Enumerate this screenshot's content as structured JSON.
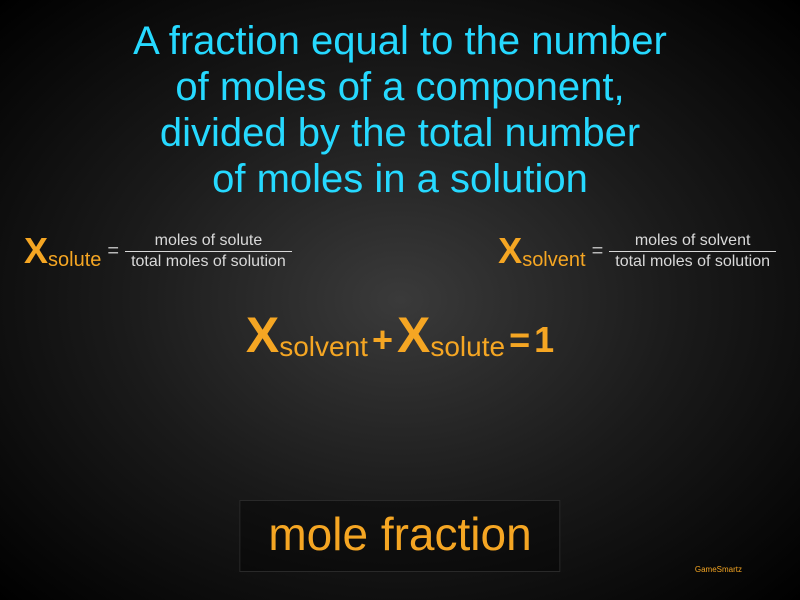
{
  "colors": {
    "definition_text": "#26d9ff",
    "formula_text": "#f5a623",
    "fraction_text": "#d9d9d9",
    "fraction_rule": "#d9d9d9",
    "equals_grey": "#b8b8b8",
    "term_text": "#f5a623",
    "watermark_text": "#f5a623"
  },
  "fonts": {
    "definition_size": 40,
    "x_size": 36,
    "subscript_size": 20,
    "equals_size": 20,
    "fraction_size": 16,
    "sum_x_size": 50,
    "sum_sub_size": 28,
    "sum_op_size": 36,
    "term_size": 46,
    "watermark_size": 8
  },
  "definition": {
    "line1": "A fraction equal to the number",
    "line2": "of moles of a component,",
    "line3": "divided by the total number",
    "line4": "of moles in a solution"
  },
  "formula_left": {
    "x": "X",
    "sub": "solute",
    "eq": "=",
    "num": "moles of solute",
    "den": "total moles of solution"
  },
  "formula_right": {
    "x": "X",
    "sub": "solvent",
    "eq": "=",
    "num": "moles of solvent",
    "den": "total moles of solution"
  },
  "sum_equation": {
    "x1": "X",
    "sub1": "solvent",
    "plus": "+",
    "x2": "X",
    "sub2": "solute",
    "eq": "=",
    "one": "1"
  },
  "term": "mole fraction",
  "watermark": "GameSmartz"
}
